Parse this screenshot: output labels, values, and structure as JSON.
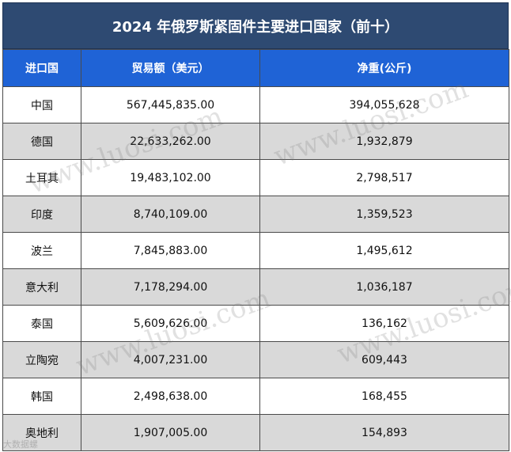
{
  "title": "2024 年俄罗斯紧固件主要进口国家（前十）",
  "columns": [
    "进口国",
    "贸易额（美元）",
    "净重(公斤)"
  ],
  "rows": [
    {
      "country": "中国",
      "value": "567,445,835.00",
      "weight": "394,055,628"
    },
    {
      "country": "德国",
      "value": "22,633,262.00",
      "weight": "1,932,879"
    },
    {
      "country": "土耳其",
      "value": "19,483,102.00",
      "weight": "2,798,517"
    },
    {
      "country": "印度",
      "value": "8,740,109.00",
      "weight": "1,359,523"
    },
    {
      "country": "波兰",
      "value": "7,845,883.00",
      "weight": "1,495,612"
    },
    {
      "country": "意大利",
      "value": "7,178,294.00",
      "weight": "1,036,187"
    },
    {
      "country": "泰国",
      "value": "5,609,626.00",
      "weight": "136,162"
    },
    {
      "country": "立陶宛",
      "value": "4,007,231.00",
      "weight": "609,443"
    },
    {
      "country": "韩国",
      "value": "2,498,638.00",
      "weight": "168,455"
    },
    {
      "country": "奥地利",
      "value": "1,907,005.00",
      "weight": "154,893"
    }
  ],
  "watermark": "www.luosi.com",
  "source_logo": "大数据螺"
}
